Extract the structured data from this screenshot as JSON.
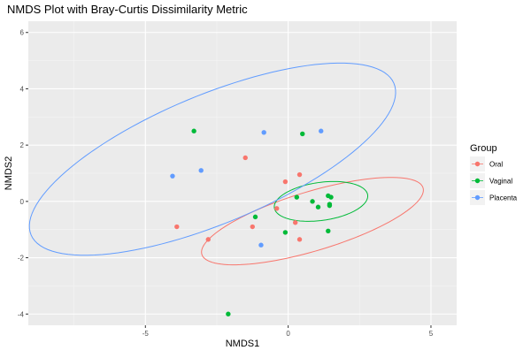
{
  "chart_data": {
    "type": "scatter",
    "title": "NMDS Plot with Bray-Curtis Dissimilarity Metric",
    "xlabel": "NMDS1",
    "ylabel": "NMDS2",
    "xlim": [
      -9.1,
      5.9
    ],
    "ylim": [
      -4.4,
      6.4
    ],
    "x_ticks": [
      -5,
      0,
      5
    ],
    "x_tick_labels": [
      "-5",
      "0",
      "5"
    ],
    "y_ticks": [
      -4,
      -2,
      0,
      2,
      4,
      6
    ],
    "y_tick_labels": [
      "-4",
      "-2",
      "0",
      "2",
      "4",
      "6"
    ],
    "grid": true,
    "legend": {
      "title": "Group",
      "position": "right"
    },
    "series": [
      {
        "name": "Oral",
        "color": "#F8766D",
        "points": [
          {
            "x": -1.5,
            "y": 1.55
          },
          {
            "x": 0.4,
            "y": 0.95
          },
          {
            "x": -0.1,
            "y": 0.7
          },
          {
            "x": -0.4,
            "y": -0.25
          },
          {
            "x": 0.25,
            "y": -0.75
          },
          {
            "x": -1.25,
            "y": -0.9
          },
          {
            "x": -3.9,
            "y": -0.9
          },
          {
            "x": -2.8,
            "y": -1.35
          },
          {
            "x": 0.4,
            "y": -1.35
          }
        ],
        "ellipse": {
          "cx": 0.85,
          "cy": -0.7,
          "rx": 8.1,
          "ry": 2.1,
          "angle_deg": 17
        }
      },
      {
        "name": "Vaginal",
        "color": "#00BA38",
        "points": [
          {
            "x": -3.3,
            "y": 2.5
          },
          {
            "x": 0.5,
            "y": 2.4
          },
          {
            "x": 0.3,
            "y": 0.15
          },
          {
            "x": 0.85,
            "y": 0.0
          },
          {
            "x": 1.05,
            "y": -0.2
          },
          {
            "x": 1.4,
            "y": 0.2
          },
          {
            "x": 1.5,
            "y": 0.15
          },
          {
            "x": 1.45,
            "y": -0.1
          },
          {
            "x": 1.45,
            "y": -0.15
          },
          {
            "x": -1.15,
            "y": -0.55
          },
          {
            "x": -0.1,
            "y": -1.1
          },
          {
            "x": 1.4,
            "y": -1.05
          },
          {
            "x": -2.1,
            "y": -4.0
          }
        ],
        "ellipse": {
          "cx": 1.15,
          "cy": 0.0,
          "rx": 3.3,
          "ry": 1.35,
          "angle_deg": 8
        }
      },
      {
        "name": "Placenta",
        "color": "#619CFF",
        "points": [
          {
            "x": -0.85,
            "y": 2.45
          },
          {
            "x": 1.15,
            "y": 2.5
          },
          {
            "x": -3.05,
            "y": 1.1
          },
          {
            "x": -4.05,
            "y": 0.9
          },
          {
            "x": -0.95,
            "y": -1.55
          }
        ],
        "ellipse": {
          "cx": -2.65,
          "cy": 1.5,
          "rx": 13.8,
          "ry": 4.55,
          "angle_deg": 23
        }
      }
    ]
  }
}
